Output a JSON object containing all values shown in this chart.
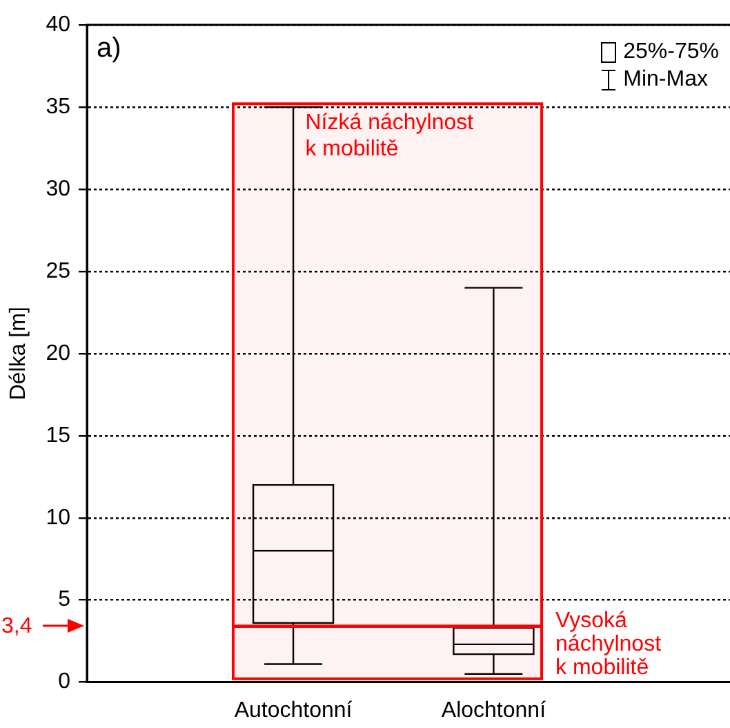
{
  "chart_data": {
    "type": "box",
    "ylabel": "Délka [m]",
    "categories": [
      "Autochtonní",
      "Alochtonní"
    ],
    "boxes": [
      {
        "low": 1.1,
        "q1": 3.6,
        "median": 8,
        "q3": 12,
        "high": 35
      },
      {
        "low": 0.5,
        "q1": 1.7,
        "median": 2.3,
        "q3": 3.3,
        "high": 24
      }
    ],
    "color": "#000000",
    "ylim": [
      0,
      40
    ],
    "yticks": [
      0,
      5,
      10,
      15,
      20,
      25,
      30,
      35,
      40
    ],
    "grid": "y",
    "bands": [
      {
        "axis": "y",
        "from": 3.4,
        "to": 35.2,
        "label": "Nízká náchylnost\nk mobilitě",
        "color": "#ff0000"
      },
      {
        "axis": "y",
        "from": 0.2,
        "to": 3.4,
        "label": "Vysoká\nnáchylnost\nk mobilitě",
        "color": "#ff0000"
      }
    ],
    "ref_lines": [
      {
        "axis": "y",
        "value": 3.4,
        "label": "3,4",
        "color": "#ff0000"
      }
    ],
    "annotations": [
      "a)",
      "25%-75%",
      "Min-Max"
    ]
  }
}
